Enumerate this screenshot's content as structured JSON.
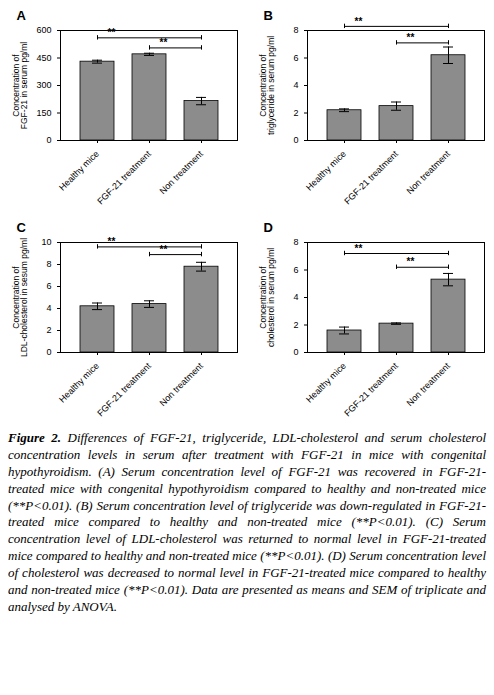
{
  "chart_data": [
    {
      "type": "bar",
      "title": "A",
      "ylabel": "Concentration of\nFGF-21 in serum pg/ml",
      "categories": [
        "Healthy mice",
        "FGF-21 treatment",
        "Non treatment"
      ],
      "values": [
        430,
        470,
        215
      ],
      "errors": [
        8,
        6,
        20
      ],
      "color": "#8c8c8c",
      "ylim": [
        0,
        600
      ],
      "yticks": [
        0,
        150,
        300,
        450,
        600
      ],
      "annotations": [
        {
          "from": "Healthy mice",
          "to": "Non treatment",
          "y": 560,
          "text": "**"
        },
        {
          "from": "FGF-21 treatment",
          "to": "Non treatment",
          "y": 505,
          "text": "**"
        }
      ]
    },
    {
      "type": "bar",
      "title": "B",
      "ylabel": "Concentration of\ntriglyceride in serum pg/ml",
      "categories": [
        "Healthy mice",
        "FGF-21 treatment",
        "Non treatment"
      ],
      "values": [
        2.2,
        2.5,
        6.2
      ],
      "errors": [
        0.1,
        0.3,
        0.6
      ],
      "color": "#8c8c8c",
      "ylim": [
        0,
        8
      ],
      "yticks": [
        0,
        2,
        4,
        6,
        8
      ],
      "annotations": [
        {
          "from": "Healthy mice",
          "to": "Non treatment",
          "y": 8.3,
          "text": "**"
        },
        {
          "from": "FGF-21 treatment",
          "to": "Non treatment",
          "y": 7.1,
          "text": "**"
        }
      ]
    },
    {
      "type": "bar",
      "title": "C",
      "ylabel": "Concentration of\nLDL-cholesterol in sesum pg/ml",
      "categories": [
        "Healthy mice",
        "FGF-21 treatment",
        "Non treatment"
      ],
      "values": [
        4.2,
        4.4,
        7.8
      ],
      "errors": [
        0.3,
        0.3,
        0.4
      ],
      "color": "#8c8c8c",
      "ylim": [
        0,
        10
      ],
      "yticks": [
        0,
        2,
        4,
        6,
        8,
        10
      ],
      "annotations": [
        {
          "from": "Healthy mice",
          "to": "Non treatment",
          "y": 9.6,
          "text": "**"
        },
        {
          "from": "FGF-21 treatment",
          "to": "Non treatment",
          "y": 8.9,
          "text": "**"
        }
      ]
    },
    {
      "type": "bar",
      "title": "D",
      "ylabel": "Concentration of\ncholesterol in serum pg/ml",
      "categories": [
        "Healthy mice",
        "FGF-21 treatment",
        "Non treatment"
      ],
      "values": [
        1.6,
        2.1,
        5.3
      ],
      "errors": [
        0.25,
        0.05,
        0.45
      ],
      "color": "#8c8c8c",
      "ylim": [
        0,
        8
      ],
      "yticks": [
        0,
        2,
        4,
        6,
        8
      ],
      "annotations": [
        {
          "from": "Healthy mice",
          "to": "Non treatment",
          "y": 7.2,
          "text": "**"
        },
        {
          "from": "FGF-21 treatment",
          "to": "Non treatment",
          "y": 6.2,
          "text": "**"
        }
      ]
    }
  ],
  "caption": {
    "label": "Figure 2.",
    "text": "Differences of FGF-21, triglyceride, LDL-cholesterol and serum cholesterol concentration levels in serum after treatment with FGF-21 in mice with congenital hypothyroidism. (A) Serum concentration level of FGF-21 was recovered in FGF-21-treated mice with congenital hypothyroidism compared to healthy and non-treated mice (**P<0.01). (B) Serum concentration level of triglyceride was down-regulated in FGF-21-treated mice compared to healthy and non-treated mice (**P<0.01). (C) Serum concentration level of LDL-cholesterol was returned to normal level in FGF-21-treated mice compared to healthy and non-treated mice (**P<0.01). (D) Serum concentration level of cholesterol was decreased to normal level in FGF-21-treated mice compared to healthy and non-treated mice (**P<0.01). Data are presented as means and SEM of triplicate and analysed by ANOVA."
  }
}
